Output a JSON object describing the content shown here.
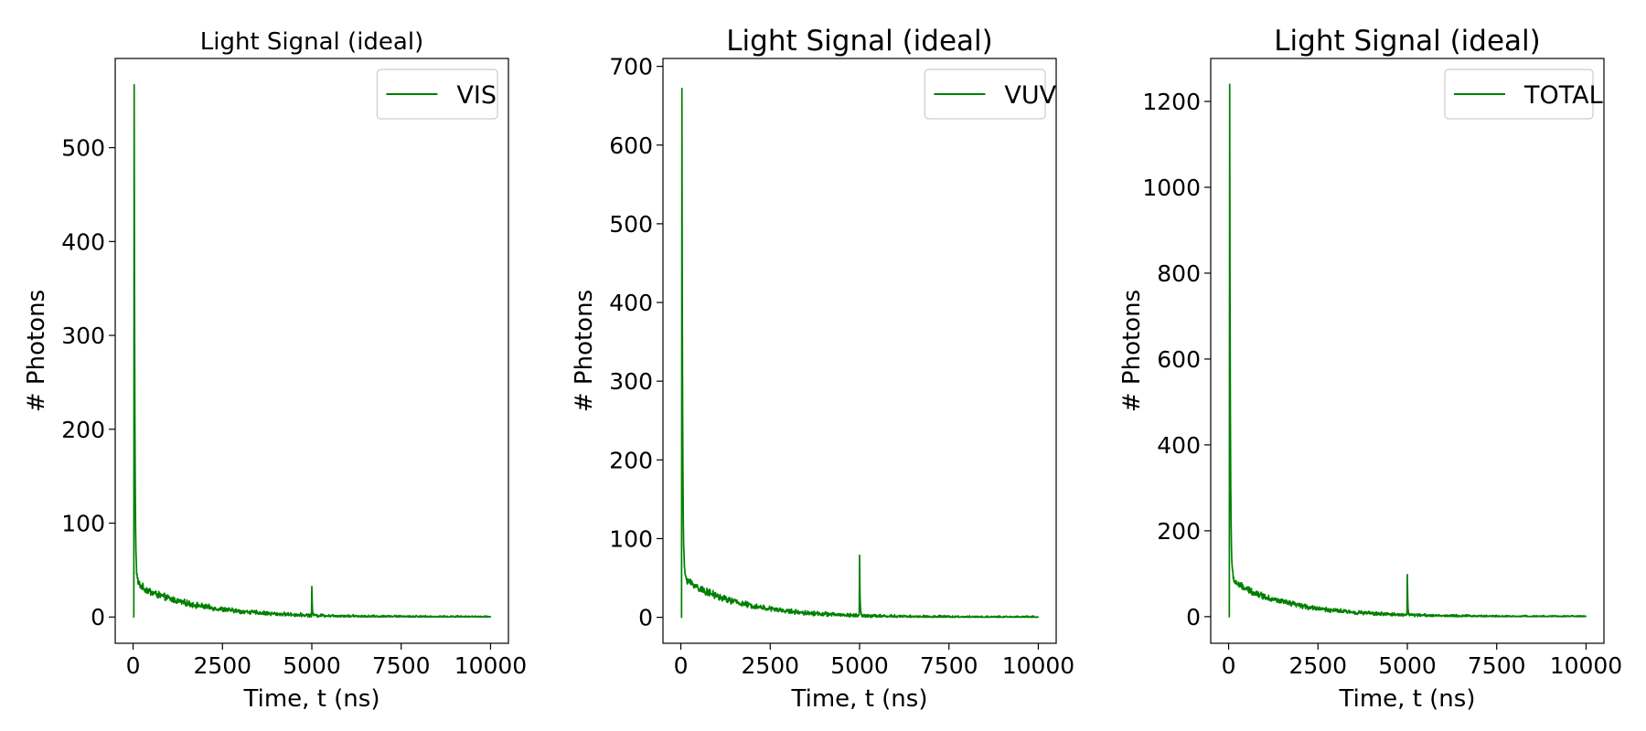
{
  "figure": {
    "line_color": "#008000"
  },
  "chart_data": [
    {
      "type": "line",
      "title": "Light Signal (ideal)",
      "xlabel": "Time, t (ns)",
      "ylabel": "# Photons",
      "xlim": [
        -500,
        10500
      ],
      "ylim": [
        -28,
        595
      ],
      "xticks": [
        0,
        2500,
        5000,
        7500,
        10000
      ],
      "xtick_labels": [
        "0",
        "2500",
        "5000",
        "7500",
        "10000"
      ],
      "yticks": [
        0,
        100,
        200,
        300,
        400,
        500
      ],
      "ytick_labels": [
        "0",
        "100",
        "200",
        "300",
        "400",
        "500"
      ],
      "legend_position": "top-right",
      "grid": false,
      "series": [
        {
          "name": "VIS",
          "color": "#008000",
          "peak_time": 30,
          "peak_value": 567,
          "fast_level": 43,
          "slow_amplitude": 35,
          "slow_tau": 1700,
          "noise": 4,
          "secondary_peak_time": 5000,
          "secondary_peak_value": 35
        }
      ]
    },
    {
      "type": "line",
      "title": "Light Signal (ideal)",
      "xlabel": "Time, t (ns)",
      "ylabel": "# Photons",
      "xlim": [
        -500,
        10500
      ],
      "ylim": [
        -33,
        710
      ],
      "xticks": [
        0,
        2500,
        5000,
        7500,
        10000
      ],
      "xtick_labels": [
        "0",
        "2500",
        "5000",
        "7500",
        "10000"
      ],
      "yticks": [
        0,
        100,
        200,
        300,
        400,
        500,
        600,
        700
      ],
      "ytick_labels": [
        "0",
        "100",
        "200",
        "300",
        "400",
        "500",
        "600",
        "700"
      ],
      "legend_position": "top-right",
      "grid": false,
      "series": [
        {
          "name": "VUV",
          "color": "#008000",
          "peak_time": 30,
          "peak_value": 672,
          "fast_level": 58,
          "slow_amplitude": 50,
          "slow_tau": 1600,
          "noise": 5,
          "secondary_peak_time": 5000,
          "secondary_peak_value": 81
        }
      ]
    },
    {
      "type": "line",
      "title": "Light Signal (ideal)",
      "xlabel": "Time, t (ns)",
      "ylabel": "# Photons",
      "xlim": [
        -500,
        10500
      ],
      "ylim": [
        -62,
        1300
      ],
      "xticks": [
        0,
        2500,
        5000,
        7500,
        10000
      ],
      "xtick_labels": [
        "0",
        "2500",
        "5000",
        "7500",
        "10000"
      ],
      "yticks": [
        0,
        200,
        400,
        600,
        800,
        1000,
        1200
      ],
      "ytick_labels": [
        "0",
        "200",
        "400",
        "600",
        "800",
        "1000",
        "1200"
      ],
      "legend_position": "top-right",
      "grid": false,
      "series": [
        {
          "name": "TOTAL",
          "color": "#008000",
          "peak_time": 30,
          "peak_value": 1240,
          "fast_level": 100,
          "slow_amplitude": 85,
          "slow_tau": 1650,
          "noise": 8,
          "secondary_peak_time": 5000,
          "secondary_peak_value": 98
        }
      ]
    }
  ]
}
